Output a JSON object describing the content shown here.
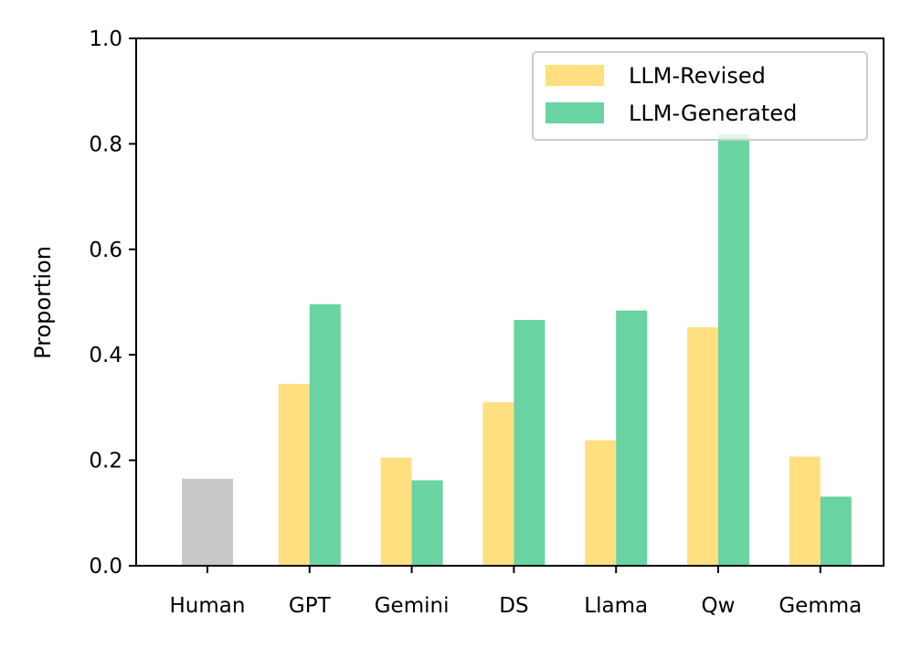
{
  "chart_data": {
    "type": "bar",
    "title": "",
    "xlabel": "",
    "ylabel": "Proportion",
    "ylim": [
      0.0,
      1.0
    ],
    "yticks": [
      "0.0",
      "0.2",
      "0.4",
      "0.6",
      "0.8",
      "1.0"
    ],
    "categories": [
      "Human",
      "GPT",
      "Gemini",
      "DS",
      "Llama",
      "Qw",
      "Gemma"
    ],
    "human": {
      "name": "Human",
      "value": 0.165,
      "color": "#c8c8c8"
    },
    "series": [
      {
        "name": "LLM-Revised",
        "color": "#ffdf80",
        "values": [
          null,
          0.345,
          0.205,
          0.31,
          0.238,
          0.452,
          0.207
        ]
      },
      {
        "name": "LLM-Generated",
        "color": "#69d3a2",
        "values": [
          null,
          0.496,
          0.162,
          0.466,
          0.484,
          0.818,
          0.131
        ]
      }
    ],
    "legend": {
      "position": "top-right",
      "entries": [
        "LLM-Revised",
        "LLM-Generated"
      ]
    },
    "grid": false
  }
}
